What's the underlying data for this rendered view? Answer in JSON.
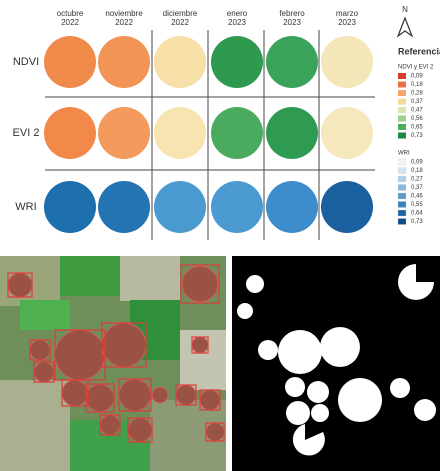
{
  "header": {
    "columns": [
      [
        "octubre",
        "2022"
      ],
      [
        "noviembre",
        "2022"
      ],
      [
        "diciembre",
        "2022"
      ],
      [
        "enero",
        "2023"
      ],
      [
        "febrero",
        "2023"
      ],
      [
        "marzo",
        "2023"
      ]
    ]
  },
  "rows": [
    "NDVI",
    "EVI 2",
    "WRI"
  ],
  "north": "N",
  "legend": {
    "title": "Referencias",
    "ndvi_title": "NDVI y EVI 2",
    "ndvi_labels": [
      "0,09",
      "0,18",
      "0,28",
      "0,37",
      "0,47",
      "0,56",
      "0,65",
      "0,73"
    ],
    "wri_title": "WRI",
    "wri_labels": [
      "0,09",
      "0,18",
      "0,27",
      "0,37",
      "0,46",
      "0,55",
      "0,64",
      "0,73"
    ]
  }
}
